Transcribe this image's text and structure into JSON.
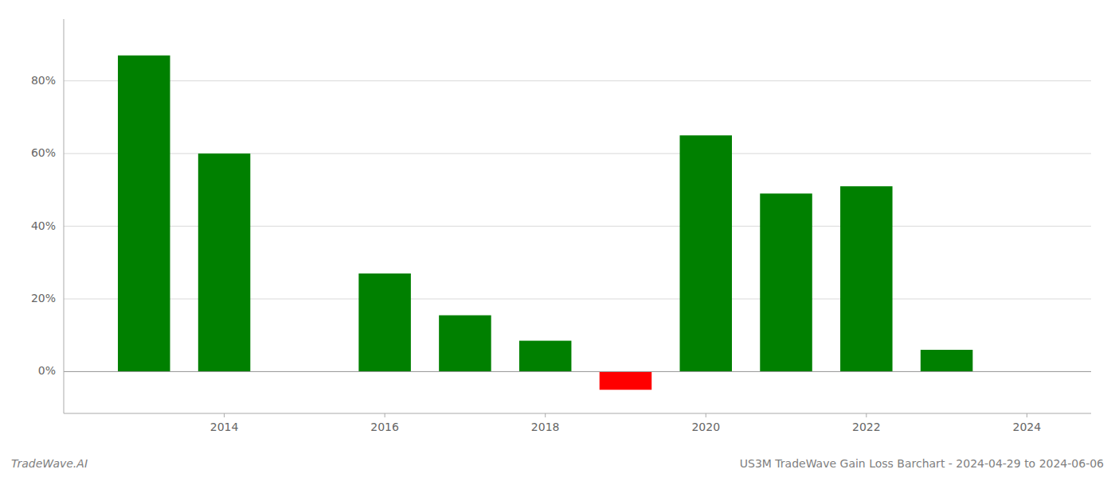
{
  "chart_data": {
    "type": "bar",
    "x": [
      2013,
      2014,
      2016,
      2017,
      2018,
      2019,
      2020,
      2021,
      2022,
      2023
    ],
    "values": [
      0.87,
      0.6,
      0.27,
      0.155,
      0.085,
      -0.05,
      0.65,
      0.49,
      0.51,
      0.06
    ],
    "colors": [
      "#008000",
      "#008000",
      "#008000",
      "#008000",
      "#008000",
      "#ff0000",
      "#008000",
      "#008000",
      "#008000",
      "#008000"
    ],
    "xlim": [
      2012.0,
      2024.8
    ],
    "ylim": [
      -0.115,
      0.97
    ],
    "xticks": [
      2014,
      2016,
      2018,
      2020,
      2022,
      2024
    ],
    "yticks": [
      {
        "value": 0.0,
        "label": "0%"
      },
      {
        "value": 0.2,
        "label": "20%"
      },
      {
        "value": 0.4,
        "label": "40%"
      },
      {
        "value": 0.6,
        "label": "60%"
      },
      {
        "value": 0.8,
        "label": "80%"
      }
    ],
    "grid": true,
    "annotations": [
      "TradeWave.AI",
      "US3M TradeWave Gain Loss Barchart - 2024-04-29 to 2024-06-06"
    ]
  }
}
